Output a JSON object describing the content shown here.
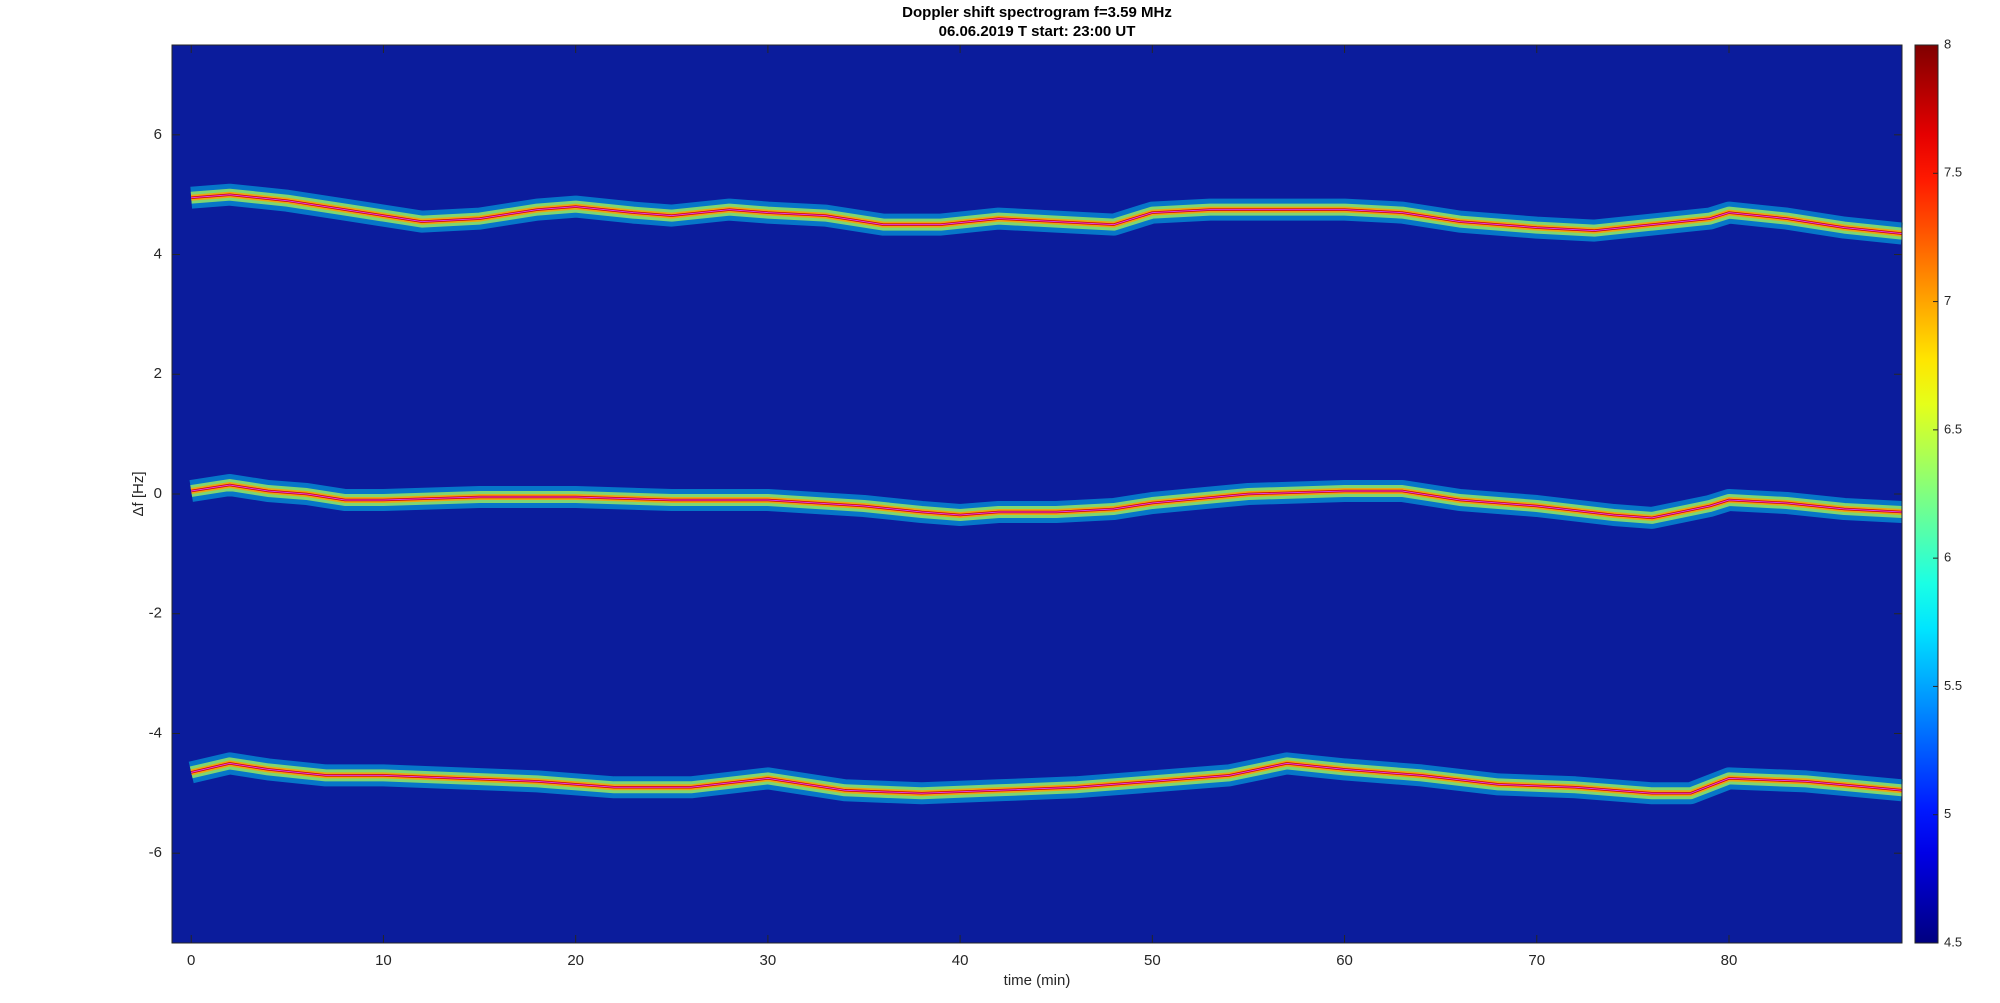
{
  "chart_data": {
    "type": "spectrogram",
    "title": "Doppler shift spectrogram f=3.59 MHz",
    "subtitle": "06.06.2019   T start: 23:00 UT",
    "x_label": "time (min)",
    "y_label": "Δf [Hz]",
    "xlim": [
      -1,
      89
    ],
    "ylim": [
      -7.5,
      7.5
    ],
    "xticks": [
      0,
      10,
      20,
      30,
      40,
      50,
      60,
      70,
      80
    ],
    "yticks": [
      -6,
      -4,
      -2,
      0,
      2,
      4,
      6
    ],
    "colormap": "jet",
    "clim": [
      4.5,
      8
    ],
    "cticks": [
      4.5,
      5,
      5.5,
      6,
      6.5,
      7,
      7.5,
      8
    ],
    "series": [
      {
        "x": [
          0,
          2,
          5,
          8,
          10,
          12,
          15,
          18,
          20,
          23,
          25,
          28,
          30,
          33,
          36,
          39,
          42,
          45,
          48,
          50,
          53,
          56,
          60,
          63,
          66,
          70,
          73,
          76,
          79,
          80,
          83,
          86,
          89
        ],
        "values": [
          4.95,
          5.0,
          4.9,
          4.75,
          4.65,
          4.55,
          4.6,
          4.75,
          4.8,
          4.7,
          4.65,
          4.75,
          4.7,
          4.65,
          4.5,
          4.5,
          4.6,
          4.55,
          4.5,
          4.7,
          4.75,
          4.75,
          4.75,
          4.7,
          4.55,
          4.45,
          4.4,
          4.5,
          4.6,
          4.7,
          4.6,
          4.45,
          4.35
        ]
      },
      {
        "x": [
          0,
          2,
          4,
          6,
          8,
          10,
          15,
          20,
          25,
          30,
          35,
          38,
          40,
          42,
          45,
          48,
          50,
          55,
          60,
          63,
          66,
          70,
          74,
          76,
          79,
          80,
          83,
          86,
          89
        ],
        "values": [
          0.05,
          0.15,
          0.05,
          0.0,
          -0.1,
          -0.1,
          -0.05,
          -0.05,
          -0.1,
          -0.1,
          -0.2,
          -0.3,
          -0.35,
          -0.3,
          -0.3,
          -0.25,
          -0.15,
          0.0,
          0.05,
          0.05,
          -0.1,
          -0.2,
          -0.35,
          -0.4,
          -0.2,
          -0.1,
          -0.15,
          -0.25,
          -0.3
        ]
      },
      {
        "x": [
          0,
          2,
          4,
          7,
          10,
          14,
          18,
          22,
          26,
          30,
          34,
          38,
          42,
          46,
          50,
          54,
          57,
          60,
          64,
          68,
          72,
          76,
          78,
          80,
          84,
          89
        ],
        "values": [
          -4.65,
          -4.5,
          -4.6,
          -4.7,
          -4.7,
          -4.75,
          -4.8,
          -4.9,
          -4.9,
          -4.75,
          -4.95,
          -5.0,
          -4.95,
          -4.9,
          -4.8,
          -4.7,
          -4.5,
          -4.6,
          -4.7,
          -4.85,
          -4.9,
          -5.0,
          -5.0,
          -4.75,
          -4.8,
          -4.95
        ]
      }
    ]
  }
}
